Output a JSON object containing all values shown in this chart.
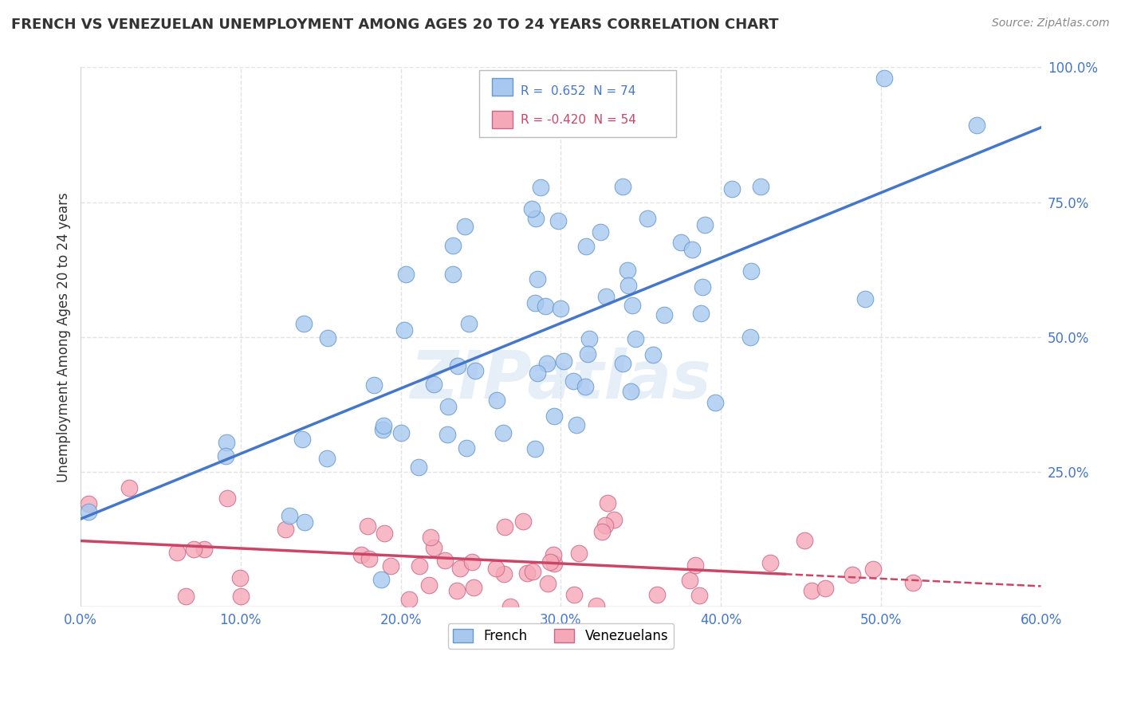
{
  "title": "FRENCH VS VENEZUELAN UNEMPLOYMENT AMONG AGES 20 TO 24 YEARS CORRELATION CHART",
  "source": "Source: ZipAtlas.com",
  "ylabel": "Unemployment Among Ages 20 to 24 years",
  "xlim": [
    0.0,
    0.6
  ],
  "ylim": [
    0.0,
    1.0
  ],
  "xticks": [
    0.0,
    0.1,
    0.2,
    0.3,
    0.4,
    0.5,
    0.6
  ],
  "yticks": [
    0.0,
    0.25,
    0.5,
    0.75,
    1.0
  ],
  "xtick_labels": [
    "0.0%",
    "10.0%",
    "20.0%",
    "30.0%",
    "40.0%",
    "50.0%",
    "60.0%"
  ],
  "ytick_labels": [
    "",
    "25.0%",
    "50.0%",
    "75.0%",
    "100.0%"
  ],
  "french_color": "#a8c8f0",
  "french_edge": "#6699cc",
  "venezuelan_color": "#f5a8b8",
  "venezuelan_edge": "#cc6688",
  "trend_french_color": "#4477cc",
  "trend_venezuelan_color": "#cc4466",
  "french_R": 0.652,
  "french_N": 74,
  "venezuelan_R": -0.42,
  "venezuelan_N": 54,
  "legend_label_french": "French",
  "legend_label_venezuelan": "Venezuelans",
  "watermark": "ZIPatlas",
  "background_color": "#ffffff",
  "grid_color": "#dddddd",
  "title_color": "#333333",
  "axis_label_color": "#4477cc"
}
